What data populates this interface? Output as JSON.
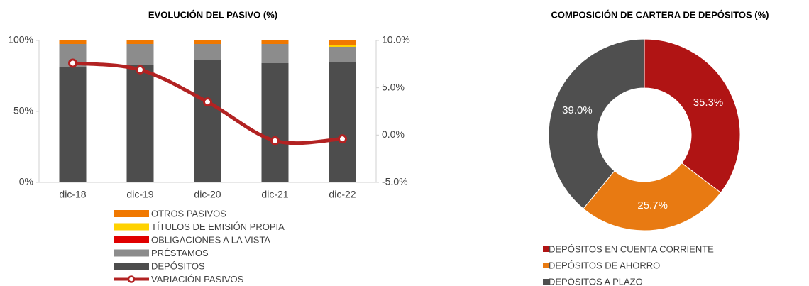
{
  "chart_data": [
    {
      "type": "bar",
      "stacked": true,
      "title": "EVOLUCIÓN DEL PASIVO (%)",
      "categories": [
        "dic-18",
        "dic-19",
        "dic-20",
        "dic-21",
        "dic-22"
      ],
      "ylim": [
        0,
        100
      ],
      "yticks": [
        {
          "value": 0,
          "label": "0%"
        },
        {
          "value": 50,
          "label": "50%"
        },
        {
          "value": 100,
          "label": "100%"
        }
      ],
      "y2lim": [
        -5,
        10
      ],
      "y2ticks": [
        {
          "value": -5,
          "label": "-5.0%"
        },
        {
          "value": 0,
          "label": "0.0%"
        },
        {
          "value": 5,
          "label": "5.0%"
        },
        {
          "value": 10,
          "label": "10.0%"
        }
      ],
      "series": [
        {
          "name": "DEPÓSITOS",
          "color": "#4d4d4d",
          "values": [
            81.5,
            83,
            86,
            84,
            85
          ]
        },
        {
          "name": "PRÉSTAMOS",
          "color": "#8c8c8c",
          "values": [
            16,
            14.5,
            11.5,
            13.5,
            10.5
          ]
        },
        {
          "name": "OBLIGACIONES A LA VISTA",
          "color": "#e00000",
          "values": [
            0,
            0,
            0,
            0,
            0
          ]
        },
        {
          "name": "TÍTULOS DE EMISIÓN PROPIA",
          "color": "#ffd200",
          "values": [
            0,
            0,
            0,
            0,
            1.5
          ]
        },
        {
          "name": "OTROS PASIVOS",
          "color": "#f07800",
          "values": [
            2.5,
            2.5,
            2.5,
            2.5,
            3
          ]
        },
        {
          "name": "VARIACIÓN PASIVOS",
          "color": "#b22222",
          "type": "line",
          "axis": "y2",
          "values": [
            7.6,
            6.9,
            3.5,
            -0.6,
            -0.4
          ]
        }
      ]
    },
    {
      "type": "donut",
      "title": "COMPOSICIÓN DE CARTERA DE DEPÓSITOS (%)",
      "categories": [
        "DEPÓSITOS EN CUENTA CORRIENTE",
        "DEPÓSITOS DE AHORRO",
        "DEPÓSITOS A PLAZO"
      ],
      "values": [
        35.3,
        25.7,
        39.0
      ],
      "value_labels": [
        "35.3%",
        "25.7%",
        "39.0%"
      ],
      "colors": [
        "#b01414",
        "#e87a12",
        "#4f4f4f"
      ]
    }
  ]
}
